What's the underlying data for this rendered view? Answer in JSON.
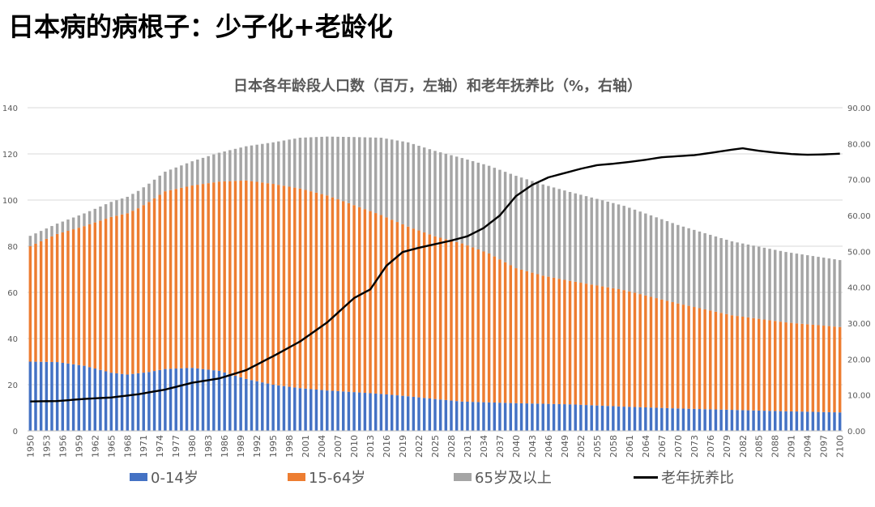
{
  "slide": {
    "title": "日本病的病根子：少子化+老龄化"
  },
  "chart_data": {
    "type": "bar",
    "stacked": true,
    "title": "日本各年龄段人口数（百万，左轴）和老年抚养比（%，右轴）",
    "x_start": 1950,
    "x_end": 2100,
    "x_tick_step": 3,
    "x_tick_labels": [
      "1950",
      "1953",
      "1956",
      "1959",
      "1962",
      "1965",
      "1968",
      "1971",
      "1974",
      "1977",
      "1980",
      "1983",
      "1986",
      "1989",
      "1992",
      "1995",
      "1998",
      "2001",
      "2004",
      "2007",
      "2010",
      "2013",
      "2016",
      "2019",
      "2022",
      "2025",
      "2028",
      "2031",
      "2034",
      "2037",
      "2040",
      "2043",
      "2046",
      "2049",
      "2052",
      "2055",
      "2058",
      "2061",
      "2064",
      "2067",
      "2070",
      "2073",
      "2076",
      "2079",
      "2082",
      "2085",
      "2088",
      "2091",
      "2094",
      "2097",
      "2100"
    ],
    "y_left": {
      "min": 0,
      "max": 140,
      "ticks": [
        "0",
        "20",
        "40",
        "60",
        "80",
        "100",
        "120",
        "140"
      ]
    },
    "y_right": {
      "min": 0,
      "max": 90,
      "ticks": [
        "0.00",
        "10.00",
        "20.00",
        "30.00",
        "40.00",
        "50.00",
        "60.00",
        "70.00",
        "80.00",
        "90.00"
      ]
    },
    "colors": {
      "age_0_14": "#4472C4",
      "age_15_64": "#ED7D31",
      "age_65_plus": "#A5A5A5",
      "dependency": "#000000"
    },
    "keyframes": {
      "age_0_14": [
        [
          1950,
          30
        ],
        [
          1955,
          29.8
        ],
        [
          1960,
          28.2
        ],
        [
          1965,
          25.2
        ],
        [
          1968,
          24.4
        ],
        [
          1972,
          25.5
        ],
        [
          1975,
          26.8
        ],
        [
          1980,
          27.3
        ],
        [
          1985,
          26
        ],
        [
          1990,
          22.5
        ],
        [
          1995,
          20
        ],
        [
          2000,
          18.5
        ],
        [
          2005,
          17.5
        ],
        [
          2010,
          16.8
        ],
        [
          2015,
          16
        ],
        [
          2020,
          15
        ],
        [
          2025,
          13.8
        ],
        [
          2030,
          12.7
        ],
        [
          2040,
          12
        ],
        [
          2050,
          11.5
        ],
        [
          2060,
          10.5
        ],
        [
          2070,
          9.7
        ],
        [
          2080,
          9.1
        ],
        [
          2090,
          8.5
        ],
        [
          2100,
          8
        ]
      ],
      "age_15_64": [
        [
          1950,
          50
        ],
        [
          1955,
          55.5
        ],
        [
          1960,
          60.5
        ],
        [
          1965,
          67.5
        ],
        [
          1970,
          71.5
        ],
        [
          1975,
          77
        ],
        [
          1980,
          79
        ],
        [
          1985,
          82
        ],
        [
          1990,
          86
        ],
        [
          1995,
          87
        ],
        [
          2000,
          86.5
        ],
        [
          2005,
          84.5
        ],
        [
          2010,
          81
        ],
        [
          2015,
          77.5
        ],
        [
          2020,
          73.5
        ],
        [
          2025,
          70.5
        ],
        [
          2030,
          68.5
        ],
        [
          2035,
          64.5
        ],
        [
          2040,
          58.5
        ],
        [
          2045,
          55.5
        ],
        [
          2050,
          53.5
        ],
        [
          2060,
          50.5
        ],
        [
          2070,
          45.5
        ],
        [
          2080,
          41
        ],
        [
          2090,
          38.5
        ],
        [
          2100,
          37
        ]
      ],
      "age_65_plus": [
        [
          1950,
          4.5
        ],
        [
          1955,
          4.5
        ],
        [
          1960,
          5.5
        ],
        [
          1965,
          6.5
        ],
        [
          1970,
          7.5
        ],
        [
          1975,
          8.5
        ],
        [
          1980,
          10.5
        ],
        [
          1985,
          12.5
        ],
        [
          1990,
          14.8
        ],
        [
          1995,
          18
        ],
        [
          2000,
          22
        ],
        [
          2005,
          25.5
        ],
        [
          2010,
          29.5
        ],
        [
          2015,
          33.5
        ],
        [
          2020,
          36.5
        ],
        [
          2025,
          37
        ],
        [
          2030,
          37
        ],
        [
          2035,
          38
        ],
        [
          2040,
          40
        ],
        [
          2045,
          39.5
        ],
        [
          2050,
          38.5
        ],
        [
          2060,
          36.5
        ],
        [
          2070,
          34
        ],
        [
          2080,
          32
        ],
        [
          2090,
          30.5
        ],
        [
          2100,
          29
        ]
      ],
      "dependency": [
        [
          1950,
          8.2
        ],
        [
          1955,
          8.3
        ],
        [
          1960,
          8.9
        ],
        [
          1965,
          9.3
        ],
        [
          1970,
          10.2
        ],
        [
          1975,
          11.5
        ],
        [
          1980,
          13.4
        ],
        [
          1985,
          14.6
        ],
        [
          1990,
          16.9
        ],
        [
          1995,
          20.8
        ],
        [
          2000,
          24.9
        ],
        [
          2005,
          30.2
        ],
        [
          2010,
          37
        ],
        [
          2013,
          39.4
        ],
        [
          2016,
          46
        ],
        [
          2019,
          49.8
        ],
        [
          2022,
          51
        ],
        [
          2025,
          52
        ],
        [
          2028,
          53
        ],
        [
          2031,
          54.2
        ],
        [
          2034,
          56.5
        ],
        [
          2037,
          60
        ],
        [
          2040,
          65.4
        ],
        [
          2043,
          68.5
        ],
        [
          2046,
          70.6
        ],
        [
          2049,
          71.8
        ],
        [
          2052,
          73
        ],
        [
          2055,
          74
        ],
        [
          2058,
          74.4
        ],
        [
          2061,
          74.9
        ],
        [
          2064,
          75.5
        ],
        [
          2067,
          76.2
        ],
        [
          2070,
          76.5
        ],
        [
          2073,
          76.8
        ],
        [
          2076,
          77.4
        ],
        [
          2079,
          78.1
        ],
        [
          2082,
          78.7
        ],
        [
          2085,
          78
        ],
        [
          2088,
          77.5
        ],
        [
          2091,
          77.1
        ],
        [
          2094,
          76.9
        ],
        [
          2097,
          77
        ],
        [
          2100,
          77.2
        ]
      ]
    },
    "legend": [
      {
        "key": "age_0_14",
        "label": "0-14岁",
        "kind": "bar"
      },
      {
        "key": "age_15_64",
        "label": "15-64岁",
        "kind": "bar"
      },
      {
        "key": "age_65_plus",
        "label": "65岁及以上",
        "kind": "bar"
      },
      {
        "key": "dependency",
        "label": "老年抚养比",
        "kind": "line"
      }
    ]
  }
}
